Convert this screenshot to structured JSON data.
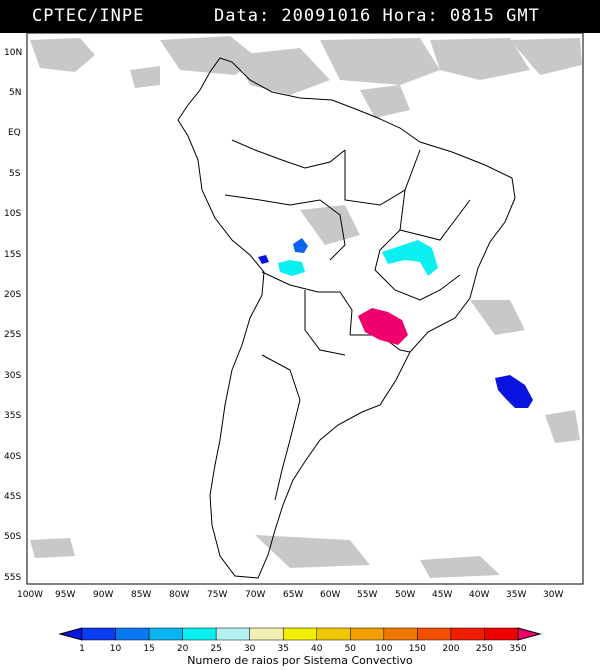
{
  "header": {
    "left": "CPTEC/INPE",
    "right": "Data: 20091016 Hora: 0815 GMT"
  },
  "lat_labels": [
    "10N",
    "5N",
    "EQ",
    "5S",
    "10S",
    "15S",
    "20S",
    "25S",
    "30S",
    "35S",
    "40S",
    "45S",
    "50S",
    "55S"
  ],
  "lon_labels": [
    "100W",
    "95W",
    "90W",
    "85W",
    "80W",
    "75W",
    "70W",
    "65W",
    "60W",
    "55W",
    "50W",
    "45W",
    "40W",
    "35W",
    "30W"
  ],
  "colorbar": {
    "labels": [
      "1",
      "10",
      "15",
      "20",
      "25",
      "30",
      "35",
      "40",
      "50",
      "100",
      "150",
      "200",
      "250",
      "350"
    ],
    "colors": [
      "#0a14e0",
      "#0a3cf0",
      "#0a78f0",
      "#0ab4f0",
      "#0af0f0",
      "#b4f0f0",
      "#f0f0b4",
      "#f0f000",
      "#f0c800",
      "#f0a000",
      "#f07800",
      "#f05000",
      "#f01e00",
      "#f00000",
      "#f0006e"
    ],
    "title": "Numero de raios por Sistema Convectivo"
  },
  "colors": {
    "cloud": "#c8c8c8",
    "land_border": "#000000",
    "system_blue": "#0a14e0",
    "system_mid_blue": "#0a64f0",
    "system_cyan": "#0af0f0",
    "system_magenta": "#f0006e"
  }
}
